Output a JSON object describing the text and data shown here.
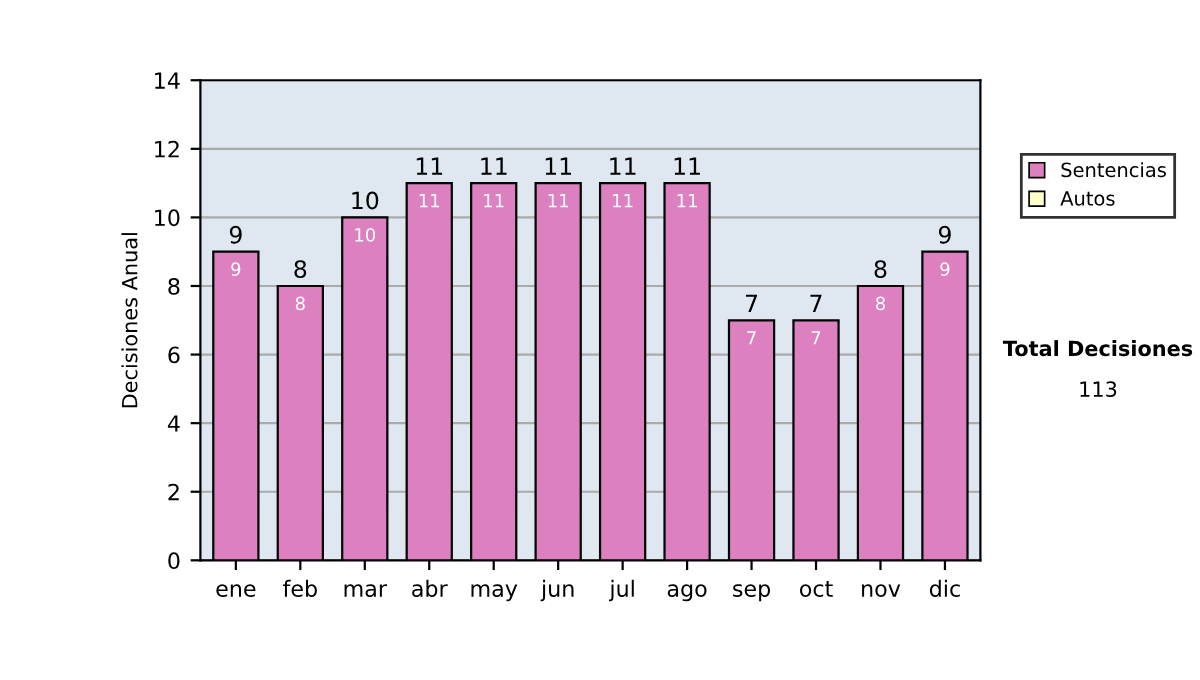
{
  "chart_data": {
    "type": "bar",
    "stacked": true,
    "ylabel": "Decisiones Anual",
    "categories": [
      "ene",
      "feb",
      "mar",
      "abr",
      "may",
      "jun",
      "jul",
      "ago",
      "sep",
      "oct",
      "nov",
      "dic"
    ],
    "series": [
      {
        "name": "Sentencias",
        "color": "#dd80c0",
        "values": [
          9,
          8,
          10,
          11,
          11,
          11,
          11,
          11,
          7,
          7,
          8,
          9
        ],
        "value_labels": [
          "9",
          "8",
          "10",
          "11",
          "11",
          "11",
          "11",
          "11",
          "7",
          "7",
          "8",
          "9"
        ]
      },
      {
        "name": "Autos",
        "color": "#ffffcc",
        "values": [
          0,
          0,
          0,
          0,
          0,
          0,
          0,
          0,
          0,
          0,
          0,
          0
        ]
      }
    ],
    "totals": [
      "9",
      "8",
      "10",
      "11",
      "11",
      "11",
      "11",
      "11",
      "7",
      "7",
      "8",
      "9"
    ],
    "ylim": [
      0,
      14
    ],
    "yticks": [
      0,
      2,
      4,
      6,
      8,
      10,
      12,
      14
    ],
    "grid": "y",
    "legend": "right",
    "annotations": [
      "Total Decisiones",
      "113"
    ]
  }
}
